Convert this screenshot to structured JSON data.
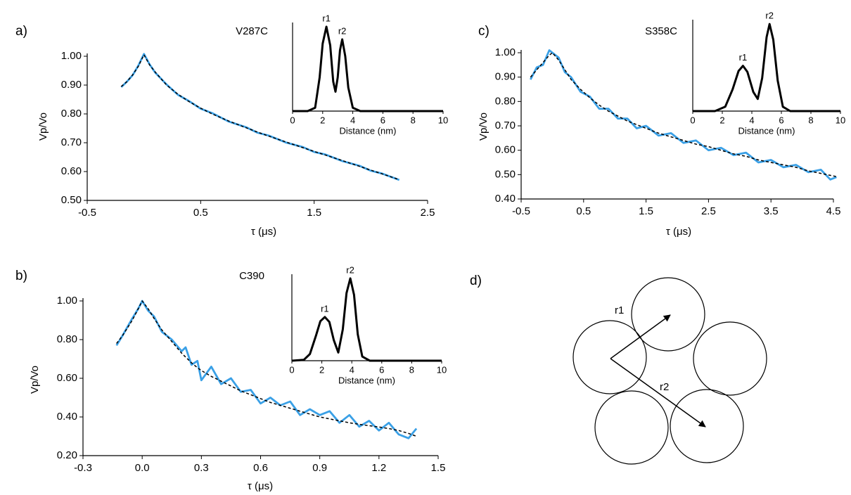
{
  "chart_data": [
    {
      "type": "line",
      "panel": "a)",
      "title": "V287C",
      "xlabel": "τ (μs)",
      "ylabel": "Vp/Vo",
      "x": [
        -0.2,
        -0.15,
        -0.1,
        -0.05,
        0,
        0.05,
        0.1,
        0.2,
        0.3,
        0.4,
        0.5,
        0.6,
        0.75,
        0.9,
        1.0,
        1.1,
        1.25,
        1.4,
        1.5,
        1.6,
        1.75,
        1.9,
        2.0,
        2.1,
        2.25
      ],
      "series": [
        {
          "color": "#3aa0e6",
          "line_style": "solid",
          "values": [
            0.893,
            0.912,
            0.934,
            0.967,
            1.008,
            0.972,
            0.943,
            0.902,
            0.866,
            0.844,
            0.818,
            0.803,
            0.773,
            0.754,
            0.735,
            0.725,
            0.701,
            0.685,
            0.668,
            0.659,
            0.636,
            0.62,
            0.603,
            0.593,
            0.571
          ]
        },
        {
          "color": "#000000",
          "line_style": "dashed",
          "values": [
            0.895,
            0.912,
            0.935,
            0.965,
            1.005,
            0.97,
            0.945,
            0.9,
            0.868,
            0.842,
            0.82,
            0.8,
            0.775,
            0.752,
            0.737,
            0.723,
            0.703,
            0.683,
            0.67,
            0.657,
            0.638,
            0.618,
            0.605,
            0.592,
            0.572
          ]
        }
      ],
      "xlim": [
        -0.5,
        2.5
      ],
      "xticks": [
        -0.5,
        0.5,
        1.5,
        2.5
      ],
      "ylim": [
        0.5,
        1.0
      ],
      "yticks": [
        {
          "value": 0.5,
          "label": "0.50"
        },
        {
          "value": 0.6,
          "label": "0.60"
        },
        {
          "value": 0.7,
          "label": "0.70"
        },
        {
          "value": 0.8,
          "label": "0.80"
        },
        {
          "value": 0.9,
          "label": "0.90"
        },
        {
          "value": 1.0,
          "label": "1.00"
        }
      ],
      "inset": {
        "type": "line",
        "color": "#000000",
        "xlabel": "Distance (nm)",
        "peak_labels": [
          "r1",
          "r2"
        ],
        "x": [
          0,
          1,
          1.5,
          1.8,
          2.0,
          2.25,
          2.5,
          2.7,
          2.85,
          3.0,
          3.15,
          3.3,
          3.5,
          3.7,
          4.0,
          4.5,
          10
        ],
        "values": [
          0,
          0,
          0.04,
          0.4,
          0.8,
          1.0,
          0.78,
          0.35,
          0.23,
          0.4,
          0.72,
          0.85,
          0.65,
          0.28,
          0.04,
          0,
          0
        ],
        "xlim": [
          0,
          10
        ],
        "xticks": [
          0,
          2,
          4,
          6,
          8,
          10
        ],
        "ylim": [
          0,
          1.05
        ]
      }
    },
    {
      "type": "line",
      "panel": "b)",
      "title": "C390",
      "xlabel": "τ (μs)",
      "ylabel": "Vp/Vo",
      "x": [
        -0.13,
        -0.1,
        -0.05,
        -0.02,
        0,
        0.03,
        0.06,
        0.1,
        0.15,
        0.2,
        0.22,
        0.25,
        0.28,
        0.3,
        0.35,
        0.4,
        0.45,
        0.5,
        0.55,
        0.6,
        0.65,
        0.7,
        0.75,
        0.8,
        0.85,
        0.9,
        0.95,
        1.0,
        1.05,
        1.1,
        1.15,
        1.2,
        1.25,
        1.3,
        1.35,
        1.39
      ],
      "series": [
        {
          "color": "#3aa0e6",
          "line_style": "solid",
          "values": [
            0.77,
            0.82,
            0.91,
            0.96,
            1.0,
            0.95,
            0.92,
            0.84,
            0.8,
            0.74,
            0.76,
            0.67,
            0.69,
            0.59,
            0.66,
            0.57,
            0.6,
            0.53,
            0.54,
            0.47,
            0.5,
            0.46,
            0.48,
            0.41,
            0.44,
            0.41,
            0.43,
            0.37,
            0.41,
            0.35,
            0.38,
            0.33,
            0.37,
            0.31,
            0.29,
            0.34
          ]
        },
        {
          "color": "#000000",
          "line_style": "dashed",
          "values": [
            0.78,
            0.82,
            0.9,
            0.96,
            1.0,
            0.96,
            0.91,
            0.85,
            0.79,
            0.73,
            0.71,
            0.68,
            0.655,
            0.64,
            0.61,
            0.585,
            0.56,
            0.535,
            0.515,
            0.495,
            0.475,
            0.46,
            0.445,
            0.43,
            0.415,
            0.4,
            0.39,
            0.38,
            0.37,
            0.362,
            0.355,
            0.348,
            0.34,
            0.33,
            0.315,
            0.3
          ]
        }
      ],
      "xlim": [
        -0.3,
        1.5
      ],
      "xticks": [
        -0.3,
        {
          "value": 0,
          "label": "0.0"
        },
        0.3,
        0.6,
        0.9,
        1.2,
        1.5
      ],
      "ylim": [
        0.2,
        1.0
      ],
      "yticks": [
        {
          "value": 0.2,
          "label": "0.20"
        },
        {
          "value": 0.4,
          "label": "0.40"
        },
        {
          "value": 0.6,
          "label": "0.60"
        },
        {
          "value": 0.8,
          "label": "0.80"
        },
        {
          "value": 1.0,
          "label": "1.00"
        }
      ],
      "inset": {
        "type": "line",
        "color": "#000000",
        "xlabel": "Distance (nm)",
        "peak_labels": [
          "r1",
          "r2"
        ],
        "x": [
          0,
          0.8,
          1.2,
          1.6,
          1.9,
          2.2,
          2.5,
          2.8,
          3.1,
          3.4,
          3.65,
          3.9,
          4.15,
          4.4,
          4.7,
          5.2,
          10
        ],
        "values": [
          0,
          0.01,
          0.08,
          0.3,
          0.48,
          0.53,
          0.47,
          0.25,
          0.1,
          0.38,
          0.82,
          1.0,
          0.8,
          0.32,
          0.05,
          0,
          0
        ],
        "xlim": [
          0,
          10
        ],
        "xticks": [
          0,
          2,
          4,
          6,
          8,
          10
        ],
        "ylim": [
          0,
          1.05
        ]
      }
    },
    {
      "type": "line",
      "panel": "c)",
      "title": "S358C",
      "xlabel": "τ (μs)",
      "ylabel": "Vp/Vo",
      "x": [
        -0.35,
        -0.25,
        -0.15,
        -0.05,
        0,
        0.1,
        0.2,
        0.3,
        0.45,
        0.6,
        0.75,
        0.9,
        1.05,
        1.2,
        1.35,
        1.5,
        1.7,
        1.9,
        2.1,
        2.3,
        2.5,
        2.7,
        2.9,
        3.1,
        3.3,
        3.5,
        3.7,
        3.9,
        4.1,
        4.3,
        4.45,
        4.55
      ],
      "series": [
        {
          "color": "#3aa0e6",
          "line_style": "solid",
          "values": [
            0.89,
            0.94,
            0.95,
            1.01,
            1.0,
            0.98,
            0.92,
            0.9,
            0.84,
            0.82,
            0.77,
            0.77,
            0.73,
            0.73,
            0.69,
            0.7,
            0.66,
            0.67,
            0.63,
            0.64,
            0.6,
            0.61,
            0.58,
            0.59,
            0.55,
            0.56,
            0.53,
            0.54,
            0.51,
            0.52,
            0.48,
            0.49
          ]
        },
        {
          "color": "#000000",
          "line_style": "dashed",
          "values": [
            0.9,
            0.93,
            0.96,
            0.99,
            1.0,
            0.97,
            0.93,
            0.89,
            0.85,
            0.815,
            0.785,
            0.76,
            0.74,
            0.72,
            0.705,
            0.69,
            0.67,
            0.655,
            0.64,
            0.625,
            0.615,
            0.6,
            0.585,
            0.575,
            0.56,
            0.55,
            0.54,
            0.53,
            0.515,
            0.505,
            0.497,
            0.492
          ]
        }
      ],
      "xlim": [
        -0.5,
        4.5
      ],
      "xticks": [
        -0.5,
        0.5,
        1.5,
        2.5,
        3.5,
        4.5
      ],
      "ylim": [
        0.4,
        1.0
      ],
      "yticks": [
        {
          "value": 0.4,
          "label": "0.40"
        },
        {
          "value": 0.5,
          "label": "0.50"
        },
        {
          "value": 0.6,
          "label": "0.60"
        },
        {
          "value": 0.7,
          "label": "0.70"
        },
        {
          "value": 0.8,
          "label": "0.80"
        },
        {
          "value": 0.9,
          "label": "0.90"
        },
        {
          "value": 1.0,
          "label": "1.00"
        }
      ],
      "inset": {
        "type": "line",
        "color": "#000000",
        "xlabel": "Distance (nm)",
        "peak_labels": [
          "r1",
          "r2"
        ],
        "x": [
          0,
          1.5,
          2.2,
          2.7,
          3.1,
          3.4,
          3.7,
          4.1,
          4.4,
          4.7,
          5.0,
          5.2,
          5.45,
          5.75,
          6.1,
          6.6,
          10
        ],
        "values": [
          0,
          0,
          0.05,
          0.25,
          0.46,
          0.52,
          0.45,
          0.22,
          0.14,
          0.38,
          0.85,
          1.0,
          0.82,
          0.35,
          0.05,
          0,
          0
        ],
        "xlim": [
          0,
          10
        ],
        "xticks": [
          0,
          2,
          4,
          6,
          8,
          10
        ],
        "ylim": [
          0,
          1.05
        ]
      }
    }
  ],
  "diagram": {
    "panel": "d)",
    "labels": [
      "r1",
      "r2"
    ]
  }
}
